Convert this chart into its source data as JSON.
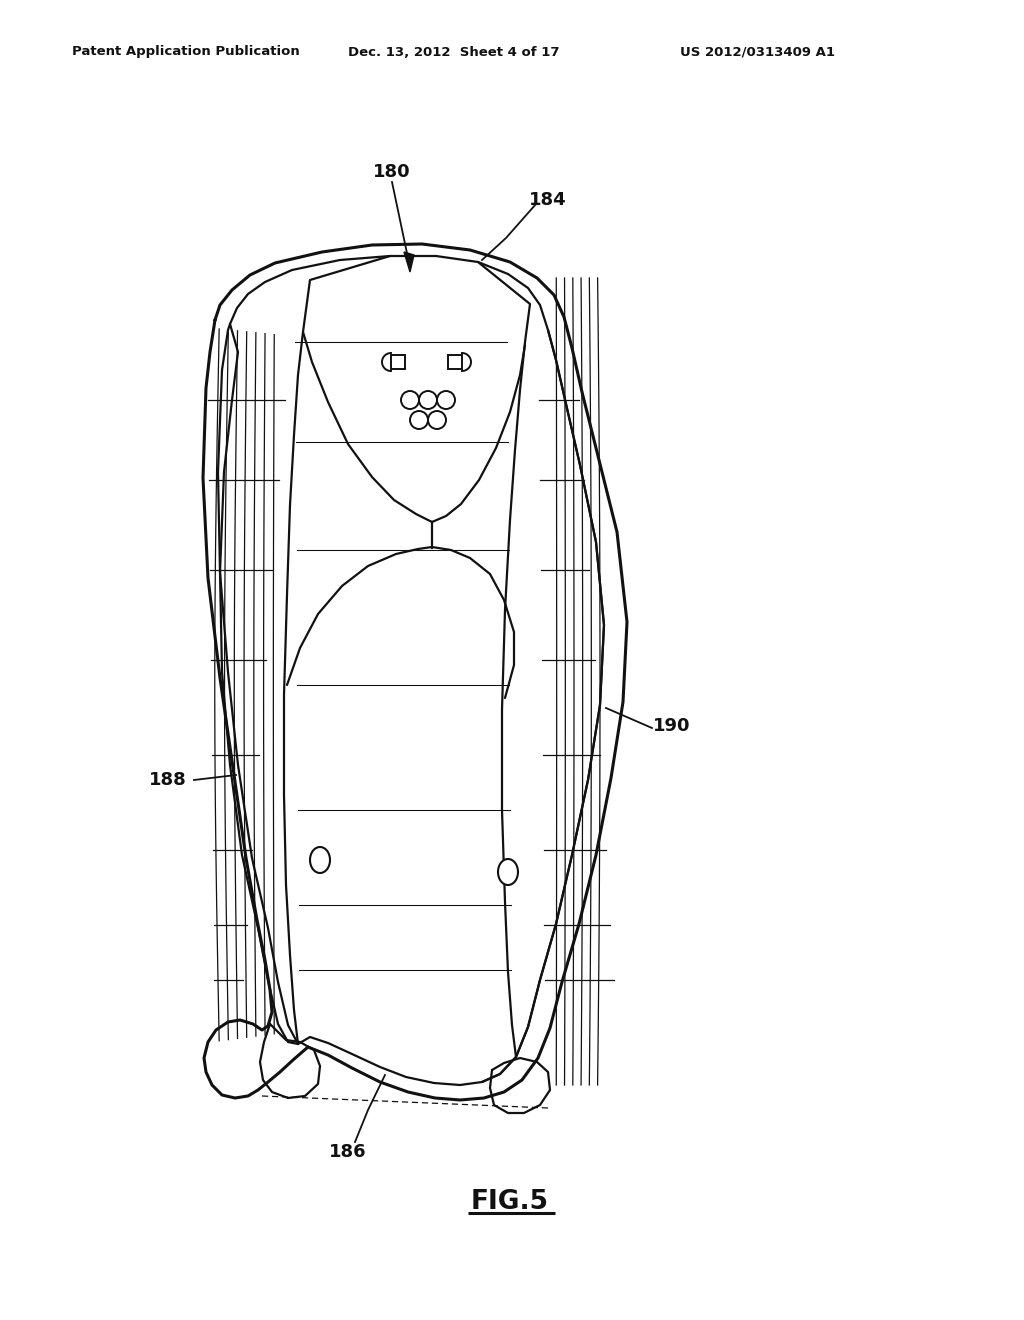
{
  "bg_color": "#ffffff",
  "lc": "#111111",
  "header_left": "Patent Application Publication",
  "header_mid": "Dec. 13, 2012  Sheet 4 of 17",
  "header_right": "US 2012/0313409 A1",
  "fig_label": "FIG.5",
  "lw_thick": 2.2,
  "lw_main": 1.6,
  "lw_thin": 0.9,
  "label_fontsize": 13
}
